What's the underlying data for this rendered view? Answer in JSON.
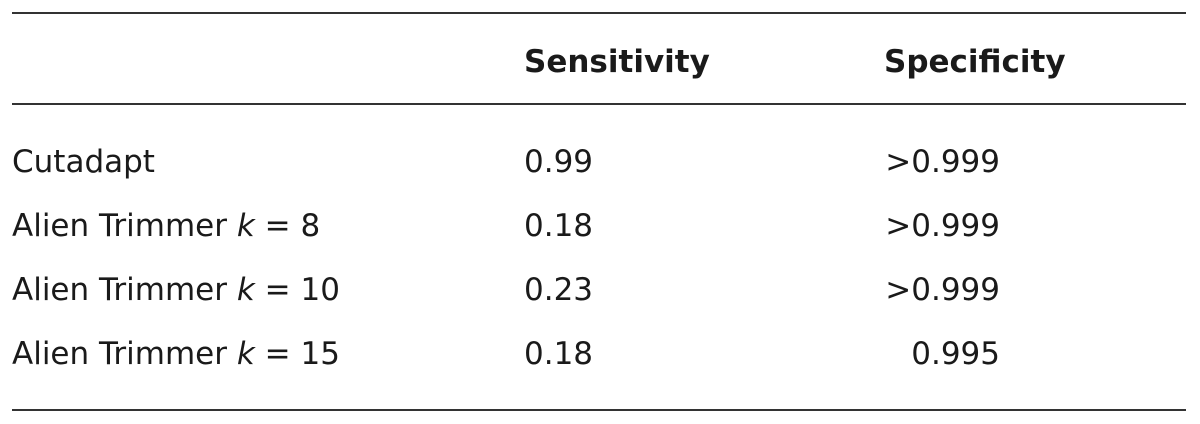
{
  "table": {
    "columns": [
      "Sensitivity",
      "Specificity"
    ],
    "rows": [
      {
        "method": "Cutadapt",
        "sensitivity": 0.99,
        "specificity": ">0.999"
      },
      {
        "method": "Alien Trimmer",
        "variable": "k",
        "condition": "= 8",
        "sensitivity": 0.18,
        "specificity": ">0.999"
      },
      {
        "method": "Alien Trimmer",
        "variable": "k",
        "condition": "= 10",
        "sensitivity": 0.23,
        "specificity": ">0.999"
      },
      {
        "method": "Alien Trimmer",
        "variable": "k",
        "condition": "= 15",
        "sensitivity": 0.18,
        "specificity": 0.995
      }
    ]
  }
}
